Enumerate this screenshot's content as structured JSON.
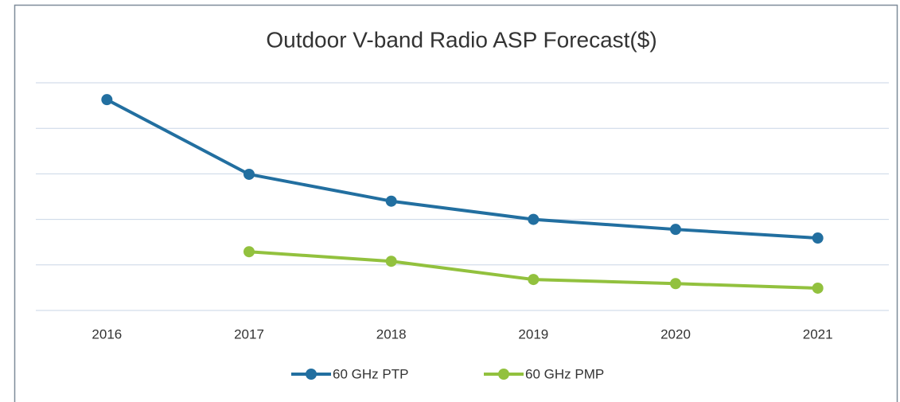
{
  "chart_data": {
    "type": "line",
    "title": "Outdoor V-band Radio ASP Forecast($)",
    "categories": [
      "2016",
      "2017",
      "2018",
      "2019",
      "2020",
      "2021"
    ],
    "series": [
      {
        "name": "60 GHz PTP",
        "color": "#226fa0",
        "values": [
          4.63,
          2.99,
          2.4,
          2.0,
          1.78,
          1.59
        ]
      },
      {
        "name": "60 GHz PMP",
        "color": "#92c13e",
        "values": [
          null,
          1.29,
          1.08,
          0.68,
          0.59,
          0.49
        ]
      }
    ],
    "ylim": [
      0,
      5
    ],
    "yticks": [
      0,
      1,
      2,
      3,
      4,
      5
    ],
    "grid": true,
    "legend": "bottom"
  }
}
